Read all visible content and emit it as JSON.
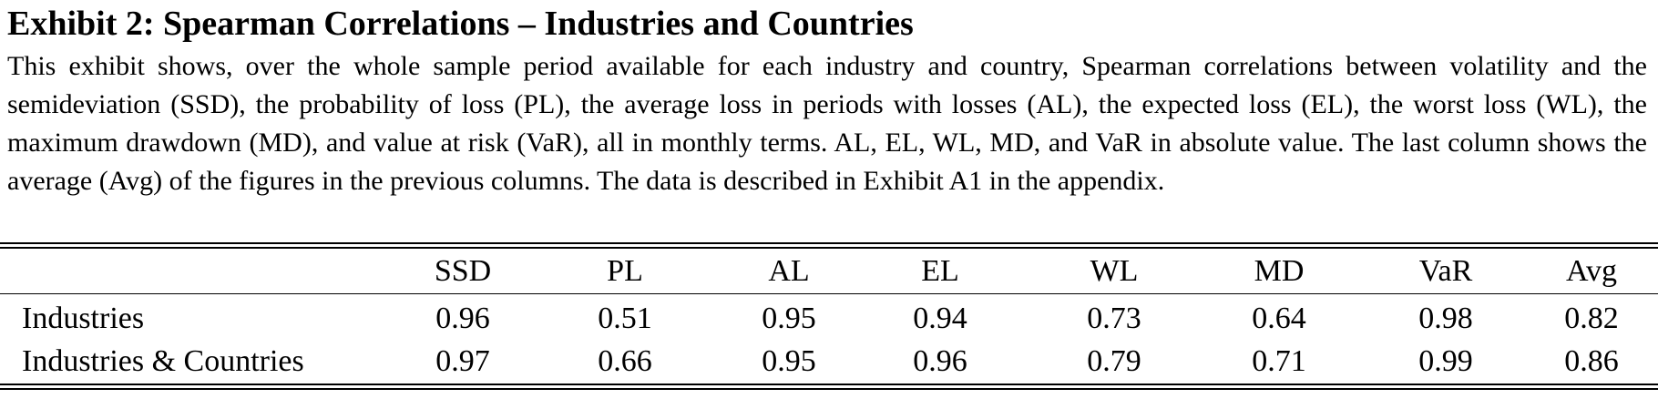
{
  "header": {
    "title": "Exhibit 2: Spearman Correlations – Industries and Countries",
    "description": "This exhibit shows, over the whole sample period available for each industry and country, Spearman correlations between volatility and the semideviation (SSD), the probability of loss (PL), the average loss in periods with losses (AL), the expected loss (EL), the worst loss (WL), the maximum drawdown (MD), and value at risk (VaR), all in monthly terms. AL, EL, WL, MD, and VaR in absolute value. The last column shows the average (Avg) of the figures in the previous columns. The data is described in Exhibit A1 in the appendix."
  },
  "table": {
    "columns": [
      "SSD",
      "PL",
      "AL",
      "EL",
      "WL",
      "MD",
      "VaR",
      "Avg"
    ],
    "rows": [
      {
        "label": "Industries",
        "values": [
          0.96,
          0.51,
          0.95,
          0.94,
          0.73,
          0.64,
          0.98,
          0.82
        ]
      },
      {
        "label": "Industries & Countries",
        "values": [
          0.97,
          0.66,
          0.95,
          0.96,
          0.79,
          0.71,
          0.99,
          0.86
        ]
      }
    ]
  }
}
